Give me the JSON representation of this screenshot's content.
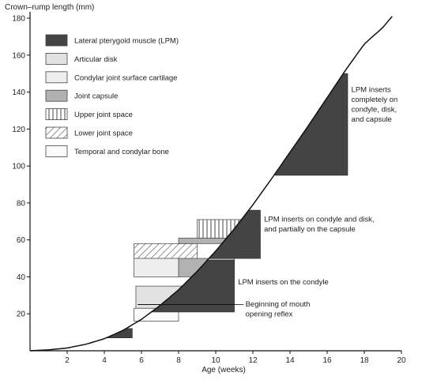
{
  "chart_data": {
    "type": "area",
    "ylabel": "Crown–rump length (mm)",
    "xlabel": "Age (weeks)",
    "xlim": [
      0,
      20
    ],
    "ylim": [
      0,
      180
    ],
    "xticks": [
      2,
      4,
      6,
      8,
      10,
      12,
      14,
      16,
      18,
      20
    ],
    "yticks": [
      20,
      40,
      60,
      80,
      100,
      120,
      140,
      160,
      180
    ],
    "grid": false,
    "legend_position": "top-left",
    "growth_curve": {
      "x": [
        0,
        1,
        2,
        3,
        4,
        5,
        6,
        7,
        8,
        9,
        10,
        11,
        12,
        13,
        14,
        15,
        16,
        17,
        18,
        19,
        19.5
      ],
      "y": [
        0,
        0.5,
        1.5,
        3.5,
        6.5,
        11,
        17,
        24.5,
        33,
        43,
        54,
        66,
        79,
        93,
        107.5,
        122,
        137,
        152,
        166,
        175,
        181
      ]
    },
    "legend": [
      {
        "label": "Lateral pterygoid muscle (LPM)",
        "style": "dark",
        "color": "#444444"
      },
      {
        "label": "Articular disk",
        "style": "light",
        "color": "#e2e2e2"
      },
      {
        "label": "Condylar joint surface cartilage",
        "style": "lighter",
        "color": "#eeeeee"
      },
      {
        "label": "Joint capsule",
        "style": "medium",
        "color": "#b2b2b2"
      },
      {
        "label": "Upper joint space",
        "style": "vertical-hatch",
        "color": "#555555"
      },
      {
        "label": "Lower joint space",
        "style": "diagonal-hatch",
        "color": "#555555"
      },
      {
        "label": "Temporal and condylar bone",
        "style": "white",
        "color": "#fbfbfb"
      }
    ],
    "structures": [
      {
        "name": "Temporal and condylar bone",
        "style": "white",
        "x": [
          5.6,
          8.0
        ],
        "y": [
          16,
          23
        ]
      },
      {
        "name": "Articular disk",
        "style": "light",
        "x": [
          5.7,
          8.2
        ],
        "y": [
          23,
          35
        ]
      },
      {
        "name": "Condylar joint surface cartilage",
        "style": "lighter",
        "x": [
          5.6,
          8.0
        ],
        "y": [
          40,
          50
        ]
      },
      {
        "name": "Joint capsule",
        "style": "medium",
        "x": [
          8.0,
          11.0
        ],
        "y": [
          40,
          50
        ]
      },
      {
        "name": "Lower joint space",
        "style": "diagonal-hatch",
        "x": [
          5.6,
          9.0
        ],
        "y": [
          50,
          58
        ]
      },
      {
        "name": "Joint capsule",
        "style": "medium",
        "x": [
          8.0,
          11.0
        ],
        "y": [
          58,
          61
        ]
      },
      {
        "name": "Upper joint space",
        "style": "vertical-hatch",
        "x": [
          9.0,
          11.5
        ],
        "y": [
          61,
          71
        ]
      }
    ],
    "lpm_regions": [
      {
        "x": [
          3.2,
          5.5
        ],
        "y": [
          7,
          12
        ]
      },
      {
        "x": [
          4.9,
          11.0
        ],
        "y": [
          21,
          49
        ]
      },
      {
        "x": [
          9.5,
          12.4
        ],
        "y": [
          50,
          76
        ]
      },
      {
        "x": [
          13.1,
          17.1
        ],
        "y": [
          95,
          150
        ]
      }
    ],
    "reflex_marker": {
      "x": [
        5.8,
        11.0
      ],
      "y": 25
    },
    "annotations": [
      {
        "lines": [
          "LPM inserts",
          "completely on",
          "condyle, disk,",
          "and capsule"
        ],
        "x": 17.3,
        "y": 140
      },
      {
        "lines": [
          "LPM inserts on condyle and disk,",
          "and partially on the capsule"
        ],
        "x": 12.6,
        "y": 70
      },
      {
        "lines": [
          "LPM inserts on the condyle"
        ],
        "x": 11.2,
        "y": 36
      },
      {
        "lines": [
          "Beginning of mouth",
          "opening reflex"
        ],
        "x": 11.6,
        "y": 24
      }
    ]
  }
}
